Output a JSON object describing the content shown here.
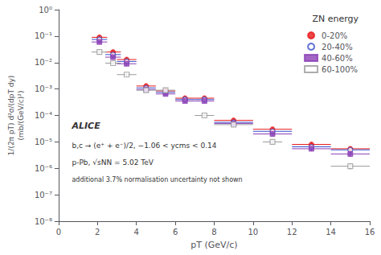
{
  "chart_data": {
    "type": "scatter",
    "xlabel": "pT (GeV/c)",
    "ylabel": "1/(2π pT) d²σ/(dpT dy)\n(mb/(GeV/c)²)",
    "xlim": [
      0,
      16
    ],
    "xticks": [
      0,
      2,
      4,
      6,
      8,
      10,
      12,
      14,
      16
    ],
    "ylim": [
      1e-08,
      1
    ],
    "yticks": [
      {
        "value": 1e-08,
        "label": "10⁻⁸"
      },
      {
        "value": 1e-07,
        "label": "10⁻⁷"
      },
      {
        "value": 1e-06,
        "label": "10⁻⁶"
      },
      {
        "value": 1e-05,
        "label": "10⁻⁵"
      },
      {
        "value": 0.0001,
        "label": "10⁻⁴"
      },
      {
        "value": 0.001,
        "label": "10⁻³"
      },
      {
        "value": 0.01,
        "label": "10⁻²"
      },
      {
        "value": 0.1,
        "label": "10⁻¹"
      },
      {
        "value": 1,
        "label": "10⁰"
      }
    ],
    "log": "y",
    "grid": false,
    "legend": "upper right",
    "legend_title": "ZN energy",
    "annotations": [
      "ALICE",
      "b,c → (e⁺ + e⁻)/2, −1.06 < ycms < 0.14",
      "p-Pb, √sNN = 5.02 TeV",
      "additional 3.7% normalisation uncertainty not shown"
    ],
    "series": [
      {
        "name": "0-20%",
        "color": "#e8191a",
        "marker": "circle",
        "x": [
          2.1,
          2.8,
          3.5,
          4.5,
          5.5,
          6.5,
          7.5,
          9.0,
          11.0,
          13.0,
          15.0
        ],
        "values": [
          0.09,
          0.025,
          0.013,
          0.0013,
          0.00085,
          0.00045,
          0.00045,
          6.5e-05,
          3e-05,
          8e-06,
          5.5e-06
        ],
        "xerr": [
          0.4,
          0.4,
          0.5,
          0.5,
          0.5,
          0.5,
          0.5,
          1.0,
          1.0,
          1.0,
          1.0
        ],
        "yerr_lo": [
          0.015,
          0.004,
          0.002,
          0.0002,
          0.00013,
          7e-05,
          7e-05,
          1.2e-05,
          5e-06,
          1.5e-06,
          1.2e-06
        ],
        "yerr_hi": [
          0.015,
          0.004,
          0.002,
          0.0002,
          0.00013,
          7e-05,
          7e-05,
          1.2e-05,
          5e-06,
          1.5e-06,
          1.2e-06
        ]
      },
      {
        "name": "20-40%",
        "color": "#3a50cc",
        "marker": "circle_open",
        "x": [
          2.1,
          2.8,
          3.5,
          4.5,
          5.5,
          6.5,
          7.5,
          9.0,
          11.0,
          13.0,
          15.0
        ],
        "values": [
          0.075,
          0.02,
          0.011,
          0.0011,
          0.00075,
          0.0004,
          0.0004,
          5.5e-05,
          2.5e-05,
          6.5e-06,
          5e-06
        ],
        "xerr": [
          0.4,
          0.4,
          0.5,
          0.5,
          0.5,
          0.5,
          0.5,
          1.0,
          1.0,
          1.0,
          1.0
        ],
        "yerr_lo": [
          0.012,
          0.003,
          0.0018,
          0.00018,
          0.00012,
          6e-05,
          6e-05,
          1e-05,
          4e-06,
          1.3e-06,
          1e-06
        ],
        "yerr_hi": [
          0.012,
          0.003,
          0.0018,
          0.00018,
          0.00012,
          6e-05,
          6e-05,
          1e-05,
          4e-06,
          1.3e-06,
          1e-06
        ]
      },
      {
        "name": "40-60%",
        "color": "#8b3fb5",
        "marker": "square",
        "x": [
          2.1,
          2.8,
          3.5,
          4.5,
          5.5,
          6.5,
          7.5,
          9.0,
          11.0,
          13.0,
          15.0
        ],
        "values": [
          0.06,
          0.016,
          0.009,
          0.00095,
          0.00065,
          0.00035,
          0.00035,
          5e-05,
          2e-05,
          5.5e-06,
          3.5e-06
        ],
        "xerr": [
          0.4,
          0.4,
          0.5,
          0.5,
          0.5,
          0.5,
          0.5,
          1.0,
          1.0,
          1.0,
          1.0
        ],
        "yerr_lo": [
          0.01,
          0.0025,
          0.0015,
          0.00015,
          0.0001,
          5.5e-05,
          5.5e-05,
          9e-06,
          3.5e-06,
          1.1e-06,
          8e-07
        ],
        "yerr_hi": [
          0.01,
          0.0025,
          0.0015,
          0.00015,
          0.0001,
          5.5e-05,
          5.5e-05,
          9e-06,
          3.5e-06,
          1.1e-06,
          8e-07
        ]
      },
      {
        "name": "60-100%",
        "color": "#999999",
        "marker": "square_open",
        "x": [
          2.1,
          2.8,
          3.5,
          4.5,
          5.5,
          7.5,
          9.0,
          11.0,
          15.0
        ],
        "values": [
          0.025,
          0.0095,
          0.0035,
          0.0009,
          0.0009,
          0.0001,
          4.5e-05,
          1e-05,
          1.2e-06
        ],
        "xerr": [
          0.4,
          0.4,
          0.5,
          0.5,
          0.5,
          0.5,
          1.0,
          0.5,
          1.0
        ],
        "yerr_lo": [
          0.005,
          0.0018,
          0.0007,
          0.00018,
          0.00018,
          2e-05,
          9e-06,
          2e-06,
          3e-07
        ],
        "yerr_hi": [
          0.005,
          0.0018,
          0.0007,
          0.00018,
          0.00018,
          2e-05,
          9e-06,
          2e-06,
          3e-07
        ]
      }
    ]
  }
}
